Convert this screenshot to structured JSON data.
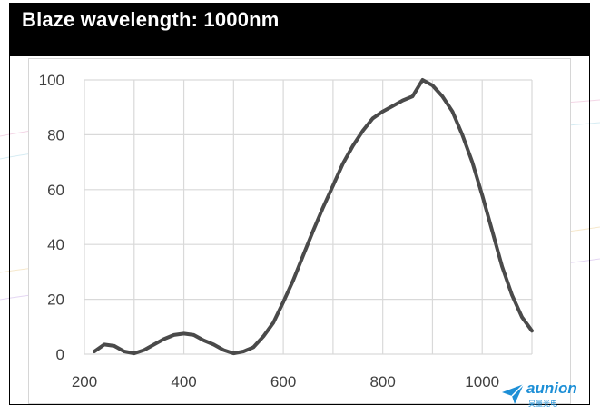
{
  "title": "Blaze wavelength: 1000nm",
  "watermark": {
    "brand": "aunion",
    "brand_cn": "昊量光电"
  },
  "colors": {
    "line": "#4a4a4a",
    "grid": "#d9d9d9",
    "title_bg": "#000000",
    "title_text": "#ffffff",
    "brand": "#1d8fd6"
  },
  "chart_data": {
    "type": "line",
    "title": "Blaze wavelength: 1000nm",
    "xlabel": "",
    "ylabel": "",
    "xlim": [
      200,
      1100
    ],
    "ylim": [
      0,
      100
    ],
    "x_ticks": [
      200,
      400,
      600,
      800,
      1000
    ],
    "y_ticks": [
      0,
      20,
      40,
      60,
      80,
      100
    ],
    "grid": true,
    "series": [
      {
        "points": [
          [
            220,
            1
          ],
          [
            240,
            3.5
          ],
          [
            260,
            3
          ],
          [
            280,
            1
          ],
          [
            300,
            0.3
          ],
          [
            320,
            1.5
          ],
          [
            340,
            3.5
          ],
          [
            360,
            5.5
          ],
          [
            380,
            7
          ],
          [
            400,
            7.5
          ],
          [
            420,
            7
          ],
          [
            440,
            5
          ],
          [
            460,
            3.5
          ],
          [
            480,
            1.5
          ],
          [
            500,
            0.3
          ],
          [
            520,
            1
          ],
          [
            540,
            2.5
          ],
          [
            560,
            6.5
          ],
          [
            580,
            11.5
          ],
          [
            600,
            19
          ],
          [
            620,
            27
          ],
          [
            640,
            36
          ],
          [
            660,
            45
          ],
          [
            680,
            53.5
          ],
          [
            700,
            61.5
          ],
          [
            720,
            69.5
          ],
          [
            740,
            76
          ],
          [
            760,
            81.5
          ],
          [
            780,
            86
          ],
          [
            800,
            88.5
          ],
          [
            820,
            90.5
          ],
          [
            840,
            92.5
          ],
          [
            860,
            94
          ],
          [
            880,
            100
          ],
          [
            900,
            98
          ],
          [
            920,
            94
          ],
          [
            940,
            88.5
          ],
          [
            960,
            80
          ],
          [
            980,
            70
          ],
          [
            1000,
            58
          ],
          [
            1020,
            45
          ],
          [
            1040,
            32
          ],
          [
            1060,
            21.5
          ],
          [
            1080,
            13.5
          ],
          [
            1100,
            8.5
          ]
        ]
      }
    ]
  }
}
